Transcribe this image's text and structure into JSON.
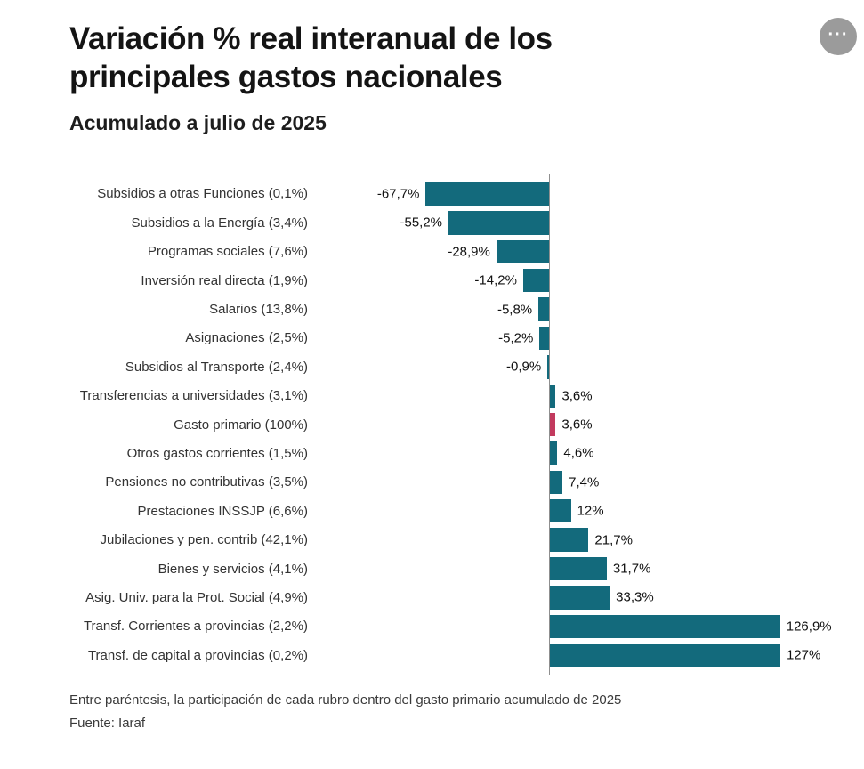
{
  "toolbar": {
    "ellipsis_glyph": "···"
  },
  "header": {
    "title": "Variación % real interanual de los principales gastos nacionales",
    "subtitle": "Acumulado a julio de 2025"
  },
  "footer": {
    "note": "Entre paréntesis, la participación de cada rubro dentro del gasto primario acumulado de 2025",
    "source": "Fuente: Iaraf"
  },
  "colors": {
    "bar": "#136a7c",
    "highlight": "#c23a5e",
    "axis": "#8f8f8f",
    "background": "#ffffff"
  },
  "chart_data": {
    "type": "bar",
    "orientation": "horizontal",
    "title": "Variación % real interanual de los principales gastos nacionales",
    "subtitle": "Acumulado a julio de 2025",
    "xlabel": "",
    "ylabel": "",
    "unit": "%",
    "xlim": [
      -80,
      140
    ],
    "grid": false,
    "legend": false,
    "highlight_category": "Gasto primario (100%)",
    "highlight_index": 8,
    "categories": [
      "Subsidios a otras Funciones (0,1%)",
      "Subsidios a la Energía (3,4%)",
      "Programas sociales (7,6%)",
      "Inversión real directa (1,9%)",
      "Salarios (13,8%)",
      "Asignaciones (2,5%)",
      "Subsidios al Transporte (2,4%)",
      "Transferencias a universidades (3,1%)",
      "Gasto primario (100%)",
      "Otros gastos corrientes (1,5%)",
      "Pensiones no contributivas (3,5%)",
      "Prestaciones INSSJP (6,6%)",
      "Jubilaciones y pen. contrib (42,1%)",
      "Bienes y servicios (4,1%)",
      "Asig. Univ. para la Prot. Social (4,9%)",
      "Transf. Corrientes a provincias (2,2%)",
      "Transf. de capital a provincias (0,2%)"
    ],
    "values": [
      -67.7,
      -55.2,
      -28.9,
      -14.2,
      -5.8,
      -5.2,
      -0.9,
      3.6,
      3.6,
      4.6,
      7.4,
      12,
      21.7,
      31.7,
      33.3,
      126.9,
      127
    ],
    "value_labels": [
      "-67,7%",
      "-55,2%",
      "-28,9%",
      "-14,2%",
      "-5,8%",
      "-5,2%",
      "-0,9%",
      "3,6%",
      "3,6%",
      "4,6%",
      "7,4%",
      "12%",
      "21,7%",
      "31,7%",
      "33,3%",
      "126,9%",
      "127%"
    ]
  }
}
